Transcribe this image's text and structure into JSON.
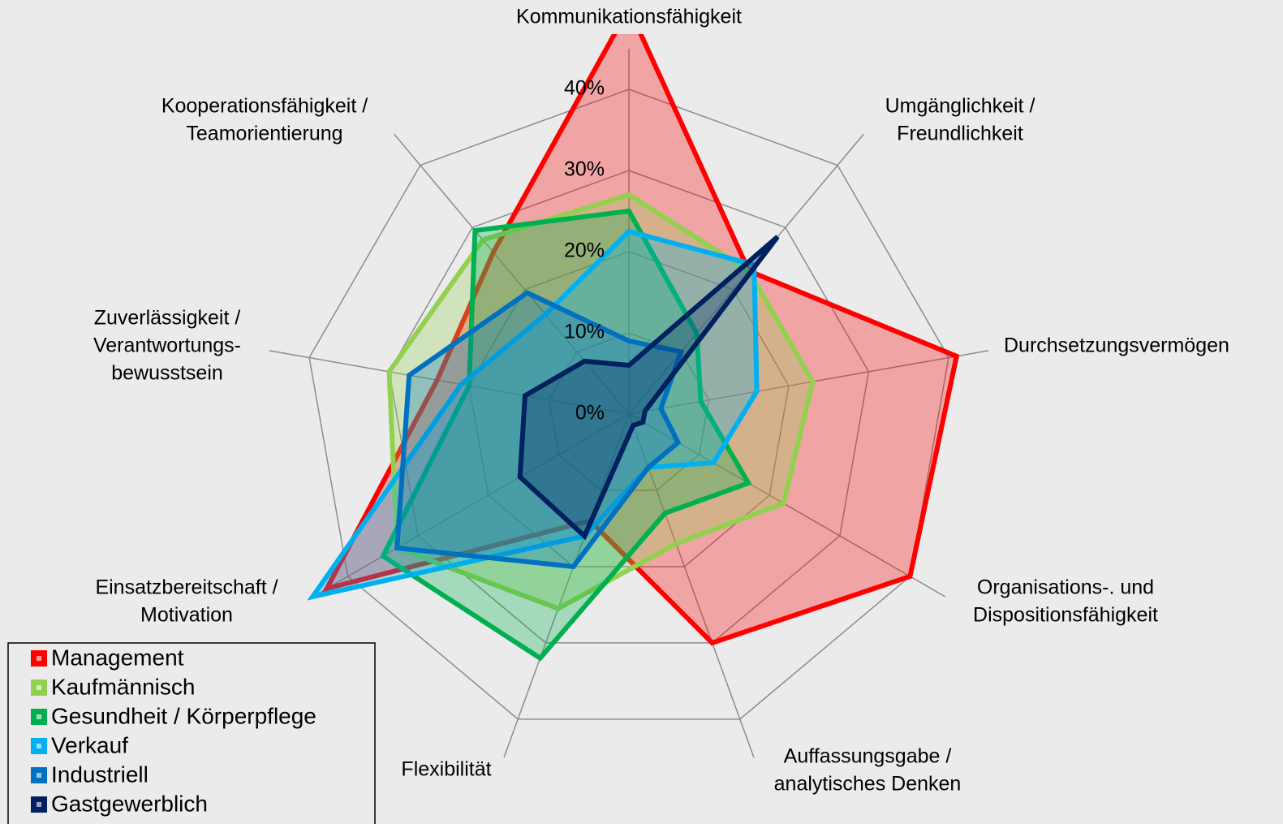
{
  "chart_data": {
    "type": "radar",
    "categories": [
      [
        "Kommunikationsfähigkeit"
      ],
      [
        "Umgänglichkeit /",
        "Freundlichkeit"
      ],
      [
        "Durchsetzungsvermögen"
      ],
      [
        "Organisations-. und",
        "Dispositionsfähigkeit"
      ],
      [
        "Auffassungsgabe /",
        "analytisches Denken"
      ],
      [
        "Flexibilität"
      ],
      [
        "Einsatzbereitschaft /",
        "Motivation"
      ],
      [
        "Zuverlässigkeit /",
        "Verantwortungs-",
        "bewusstsein"
      ],
      [
        "Kooperationsfähigkeit /",
        "Teamorientierung"
      ]
    ],
    "series": [
      {
        "name": "Management",
        "color": "#ff0000",
        "values": [
          50,
          23,
          41,
          40,
          30,
          14,
          43,
          24,
          26
        ]
      },
      {
        "name": "Kaufmännisch",
        "color": "#92d050",
        "values": [
          27,
          23,
          23,
          22,
          17,
          25.5,
          33,
          30,
          28
        ]
      },
      {
        "name": "Gesundheit / Körperpflege",
        "color": "#00b050",
        "values": [
          25,
          13,
          9,
          17,
          13,
          32,
          35,
          20,
          29.5
        ]
      },
      {
        "name": "Verkauf",
        "color": "#00b0f0",
        "values": [
          22.5,
          24,
          16,
          12,
          7,
          16,
          45,
          21,
          16
        ]
      },
      {
        "name": "Industriell",
        "color": "#0070c0",
        "values": [
          9,
          10,
          4,
          7,
          7,
          20,
          33,
          27.5,
          19.5
        ]
      },
      {
        "name": "Gastgewerblich",
        "color": "#002060",
        "values": [
          6,
          28.5,
          2,
          2,
          1.5,
          16,
          15.5,
          13,
          8.5
        ]
      }
    ],
    "ylim": [
      0,
      40
    ],
    "yticks": [
      {
        "value": 0,
        "label": "0%"
      },
      {
        "value": 10,
        "label": "10%"
      },
      {
        "value": 20,
        "label": "20%"
      },
      {
        "value": 30,
        "label": "30%"
      },
      {
        "value": 40,
        "label": "40%"
      }
    ],
    "grid": true,
    "legend": "bottom-left"
  }
}
